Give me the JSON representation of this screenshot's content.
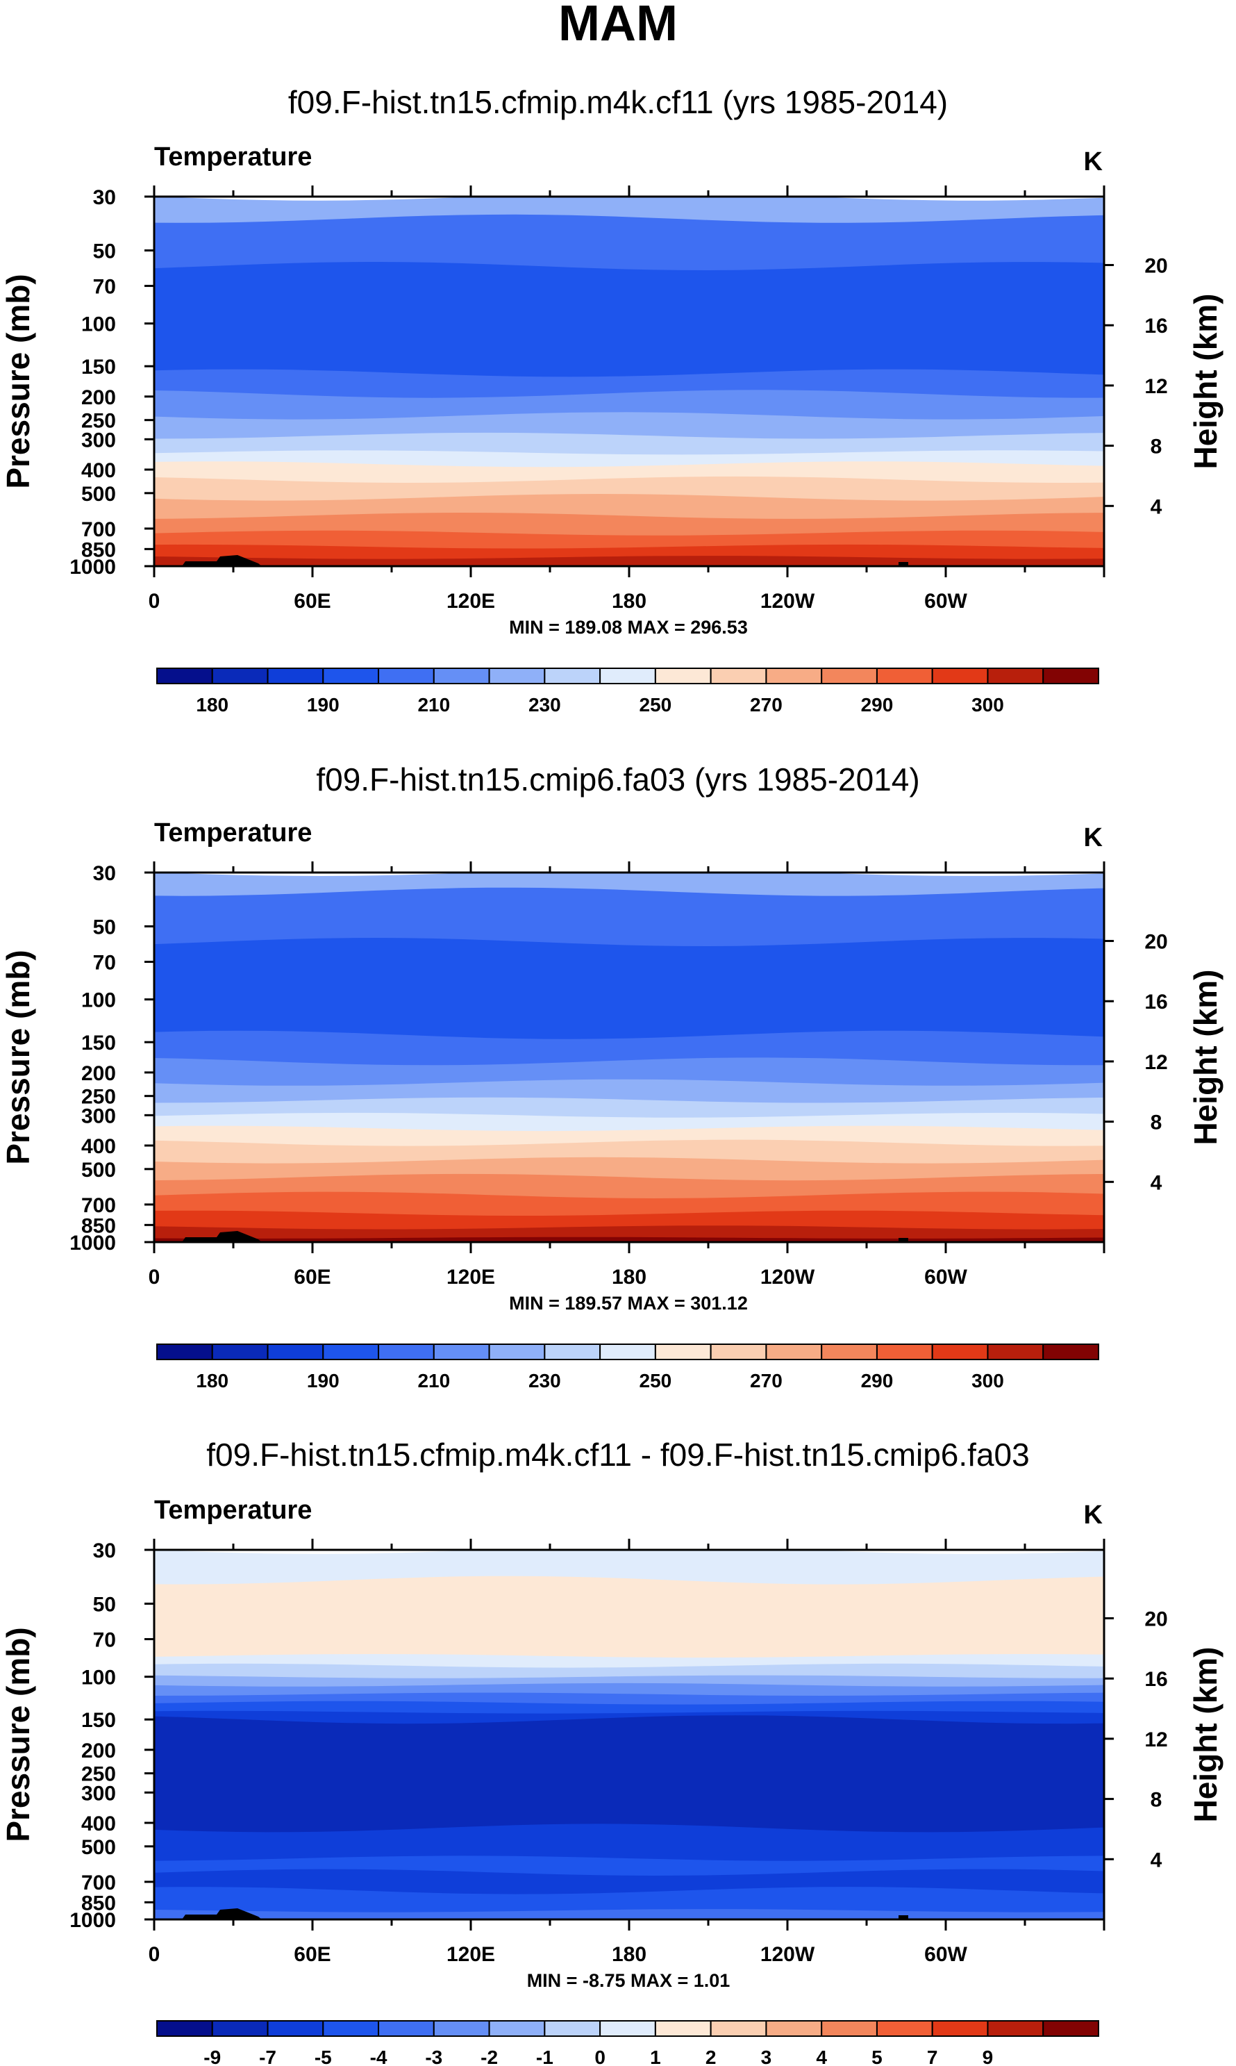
{
  "title": "MAM",
  "colorbar_colors": [
    "#050f8c",
    "#0a2ab9",
    "#0f3ed9",
    "#1e55ec",
    "#3f6ff3",
    "#658ff6",
    "#8fb0f8",
    "#bcd3fa",
    "#e0ecfc",
    "#fde8d6",
    "#fbcfb2",
    "#f7ac86",
    "#f3865c",
    "#f05f36",
    "#e23917",
    "#b81f0c",
    "#820303"
  ],
  "chart_data": [
    {
      "type": "heatmap",
      "title": "f09.F-hist.tn15.cfmip.m4k.cf11 (yrs 1985-2014)",
      "variable": "Temperature",
      "units": "K",
      "ylabel": "Pressure (mb)",
      "ylabel_right": "Height (km)",
      "xticks": [
        "0",
        "60E",
        "120E",
        "180",
        "120W",
        "60W"
      ],
      "yticks": [
        "30",
        "50",
        "70",
        "100",
        "150",
        "200",
        "250",
        "300",
        "400",
        "500",
        "700",
        "850",
        "1000"
      ],
      "height_ticks": [
        "20",
        "16",
        "12",
        "8",
        "4"
      ],
      "stats": "MIN = 189.08   MAX = 296.53",
      "colorbar_labels": [
        "180",
        "190",
        "210",
        "230",
        "250",
        "270",
        "290",
        "300"
      ],
      "bands": [
        {
          "p": 30,
          "level": 6
        },
        {
          "p": 37,
          "level": 4
        },
        {
          "p": 58,
          "level": 3
        },
        {
          "p": 160,
          "level": 4
        },
        {
          "p": 195,
          "level": 5
        },
        {
          "p": 240,
          "level": 6
        },
        {
          "p": 290,
          "level": 7
        },
        {
          "p": 340,
          "level": 8
        },
        {
          "p": 380,
          "level": 9
        },
        {
          "p": 440,
          "level": 10
        },
        {
          "p": 520,
          "level": 11
        },
        {
          "p": 620,
          "level": 12
        },
        {
          "p": 730,
          "level": 13
        },
        {
          "p": 830,
          "level": 14
        },
        {
          "p": 920,
          "level": 15
        },
        {
          "p": 1000,
          "level": 15
        }
      ]
    },
    {
      "type": "heatmap",
      "title": "f09.F-hist.tn15.cmip6.fa03 (yrs 1985-2014)",
      "variable": "Temperature",
      "units": "K",
      "ylabel": "Pressure (mb)",
      "ylabel_right": "Height (km)",
      "xticks": [
        "0",
        "60E",
        "120E",
        "180",
        "120W",
        "60W"
      ],
      "yticks": [
        "30",
        "50",
        "70",
        "100",
        "150",
        "200",
        "250",
        "300",
        "400",
        "500",
        "700",
        "850",
        "1000"
      ],
      "height_ticks": [
        "20",
        "16",
        "12",
        "8",
        "4"
      ],
      "stats": "MIN = 189.57   MAX = 301.12",
      "colorbar_labels": [
        "180",
        "190",
        "210",
        "230",
        "250",
        "270",
        "290",
        "300"
      ],
      "bands": [
        {
          "p": 30,
          "level": 6
        },
        {
          "p": 36,
          "level": 4
        },
        {
          "p": 58,
          "level": 3
        },
        {
          "p": 140,
          "level": 4
        },
        {
          "p": 180,
          "level": 5
        },
        {
          "p": 220,
          "level": 6
        },
        {
          "p": 260,
          "level": 7
        },
        {
          "p": 300,
          "level": 8
        },
        {
          "p": 340,
          "level": 9
        },
        {
          "p": 390,
          "level": 10
        },
        {
          "p": 460,
          "level": 11
        },
        {
          "p": 540,
          "level": 12
        },
        {
          "p": 640,
          "level": 13
        },
        {
          "p": 760,
          "level": 14
        },
        {
          "p": 870,
          "level": 15
        },
        {
          "p": 960,
          "level": 16
        }
      ]
    },
    {
      "type": "heatmap",
      "title": "f09.F-hist.tn15.cfmip.m4k.cf11 - f09.F-hist.tn15.cmip6.fa03",
      "variable": "Temperature",
      "units": "K",
      "ylabel": "Pressure (mb)",
      "ylabel_right": "Height (km)",
      "xticks": [
        "0",
        "60E",
        "120E",
        "180",
        "120W",
        "60W"
      ],
      "yticks": [
        "30",
        "50",
        "70",
        "100",
        "150",
        "200",
        "250",
        "300",
        "400",
        "500",
        "700",
        "850",
        "1000"
      ],
      "height_ticks": [
        "20",
        "16",
        "12",
        "8",
        "4"
      ],
      "stats": "MIN = -8.75   MAX =   1.01",
      "colorbar_labels": [
        "-9",
        "-7",
        "-5",
        "-4",
        "-3",
        "-2",
        "-1",
        "0",
        "1",
        "2",
        "3",
        "4",
        "5",
        "7",
        "9"
      ],
      "bands": [
        {
          "p": 30,
          "level": 8
        },
        {
          "p": 40,
          "level": 9
        },
        {
          "p": 82,
          "level": 8
        },
        {
          "p": 90,
          "level": 7
        },
        {
          "p": 100,
          "level": 6
        },
        {
          "p": 108,
          "level": 5
        },
        {
          "p": 118,
          "level": 4
        },
        {
          "p": 128,
          "level": 3
        },
        {
          "p": 140,
          "level": 2
        },
        {
          "p": 150,
          "level": 1
        },
        {
          "p": 420,
          "level": 2
        },
        {
          "p": 560,
          "level": 3
        },
        {
          "p": 640,
          "level": 2
        },
        {
          "p": 760,
          "level": 3
        },
        {
          "p": 920,
          "level": 4
        }
      ]
    }
  ]
}
